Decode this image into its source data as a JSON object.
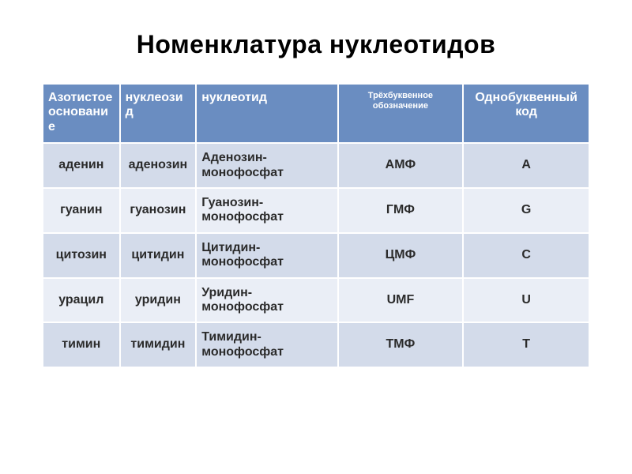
{
  "title": "Номенклатура нуклеотидов",
  "table": {
    "type": "table",
    "header_bg": "#6a8dc1",
    "header_fg": "#ffffff",
    "row_odd_bg": "#d3dbea",
    "row_even_bg": "#eaeef6",
    "text_color": "#2b2b2b",
    "font_family": "Arial",
    "title_fontsize": 32,
    "header_fontsize": 16,
    "cell_fontsize": 16,
    "col_widths_pct": [
      14,
      14,
      26,
      23,
      23
    ],
    "columns": [
      {
        "label": "Азотистое основание",
        "align": "left",
        "small": false
      },
      {
        "label": "нуклеозид",
        "align": "left",
        "small": false
      },
      {
        "label": "нуклеотид",
        "align": "left",
        "small": false
      },
      {
        "label": "Трёхбуквенное обозначение",
        "align": "center",
        "small": true
      },
      {
        "label": "Однобуквенный код",
        "align": "center",
        "small": false
      }
    ],
    "rows": [
      {
        "base": "аденин",
        "nucleoside": "аденозин",
        "nucleotide": "Аденозин-монофосфат",
        "code3": "АМФ",
        "code1": "A"
      },
      {
        "base": "гуанин",
        "nucleoside": "гуанозин",
        "nucleotide": "Гуанозин-монофосфат",
        "code3": "ГМФ",
        "code1": "G"
      },
      {
        "base": "цитозин",
        "nucleoside": "цитидин",
        "nucleotide": "Цитидин-монофосфат",
        "code3": "ЦМФ",
        "code1": "C"
      },
      {
        "base": "урацил",
        "nucleoside": "уридин",
        "nucleotide": "Уридин-монофосфат",
        "code3": "UMF",
        "code1": "U"
      },
      {
        "base": "тимин",
        "nucleoside": "тимидин",
        "nucleotide": "Тимидин-монофосфат",
        "code3": "ТМФ",
        "code1": "T"
      }
    ]
  }
}
